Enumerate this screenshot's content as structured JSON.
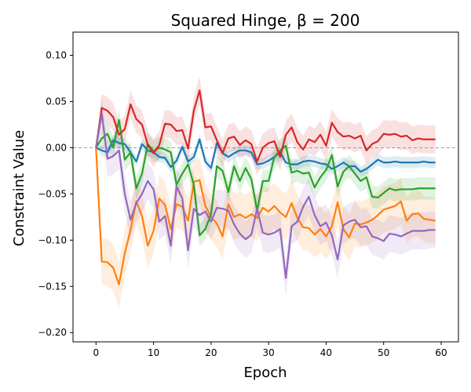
{
  "chart_data": {
    "type": "line",
    "title": "Squared Hinge, β = 200",
    "xlabel": "Epoch",
    "ylabel": "Constraint Value",
    "xlim": [
      -4,
      63
    ],
    "ylim": [
      -0.21,
      0.125
    ],
    "xticks": [
      "0",
      "10",
      "20",
      "30",
      "40",
      "50",
      "60"
    ],
    "yticks": [
      "0.10",
      "0.05",
      "0.00",
      "−0.05",
      "−0.10",
      "−0.15",
      "−0.20"
    ],
    "reference_line": 0.0,
    "grid": false,
    "x": [
      0,
      1,
      2,
      3,
      4,
      5,
      6,
      7,
      8,
      9,
      10,
      11,
      12,
      13,
      14,
      15,
      16,
      17,
      18,
      19,
      20,
      21,
      22,
      23,
      24,
      25,
      26,
      27,
      28,
      29,
      30,
      31,
      32,
      33,
      34,
      35,
      36,
      37,
      38,
      39,
      40,
      41,
      42,
      43,
      44,
      45,
      46,
      47,
      48,
      49,
      50,
      51,
      52,
      53,
      54,
      55,
      56,
      57,
      58,
      59
    ],
    "series": [
      {
        "color": "#1f77b4",
        "band": 0.006,
        "values": [
          0.0,
          -0.003,
          -0.005,
          0.008,
          0.005,
          0.004,
          -0.005,
          -0.015,
          0.004,
          -0.003,
          -0.005,
          -0.01,
          -0.011,
          -0.021,
          -0.014,
          0.001,
          -0.015,
          -0.01,
          0.009,
          -0.015,
          -0.022,
          0.005,
          -0.006,
          -0.01,
          -0.006,
          -0.003,
          -0.003,
          -0.005,
          -0.018,
          -0.017,
          -0.014,
          -0.01,
          -0.005,
          -0.016,
          -0.018,
          -0.018,
          -0.015,
          -0.014,
          -0.015,
          -0.017,
          -0.018,
          -0.023,
          -0.02,
          -0.016,
          -0.02,
          -0.02,
          -0.026,
          -0.023,
          -0.018,
          -0.013,
          -0.016,
          -0.016,
          -0.015,
          -0.016,
          -0.016,
          -0.016,
          -0.016,
          -0.015,
          -0.016,
          -0.016
        ]
      },
      {
        "color": "#ff7f0e",
        "band": 0.025,
        "values": [
          0.0,
          -0.123,
          -0.124,
          -0.13,
          -0.148,
          -0.114,
          -0.089,
          -0.058,
          -0.074,
          -0.106,
          -0.09,
          -0.055,
          -0.062,
          -0.088,
          -0.061,
          -0.064,
          -0.079,
          -0.037,
          -0.035,
          -0.063,
          -0.075,
          -0.082,
          -0.096,
          -0.061,
          -0.075,
          -0.072,
          -0.076,
          -0.072,
          -0.076,
          -0.065,
          -0.069,
          -0.063,
          -0.07,
          -0.075,
          -0.06,
          -0.076,
          -0.086,
          -0.087,
          -0.094,
          -0.088,
          -0.096,
          -0.085,
          -0.059,
          -0.088,
          -0.097,
          -0.082,
          -0.083,
          -0.081,
          -0.078,
          -0.073,
          -0.067,
          -0.065,
          -0.063,
          -0.058,
          -0.079,
          -0.072,
          -0.071,
          -0.077,
          -0.078,
          -0.079
        ]
      },
      {
        "color": "#2ca02c",
        "band": 0.012,
        "values": [
          0.0,
          0.01,
          0.015,
          0.0,
          0.03,
          -0.013,
          -0.005,
          -0.044,
          -0.028,
          0.004,
          -0.004,
          0.0,
          -0.002,
          -0.005,
          -0.04,
          -0.028,
          -0.018,
          -0.04,
          -0.095,
          -0.088,
          -0.072,
          -0.02,
          -0.025,
          -0.048,
          -0.02,
          -0.036,
          -0.022,
          -0.034,
          -0.068,
          -0.036,
          -0.036,
          -0.01,
          -0.003,
          0.002,
          -0.027,
          -0.025,
          -0.028,
          -0.027,
          -0.043,
          -0.032,
          -0.024,
          -0.008,
          -0.042,
          -0.026,
          -0.02,
          -0.028,
          -0.036,
          -0.032,
          -0.053,
          -0.054,
          -0.049,
          -0.044,
          -0.046,
          -0.045,
          -0.045,
          -0.045,
          -0.044,
          -0.044,
          -0.044,
          -0.044
        ]
      },
      {
        "color": "#d62728",
        "band": 0.015,
        "values": [
          0.0,
          0.043,
          0.04,
          0.033,
          0.014,
          0.02,
          0.047,
          0.031,
          0.025,
          0.003,
          -0.006,
          0.003,
          0.026,
          0.025,
          0.018,
          0.019,
          -0.001,
          0.04,
          0.062,
          0.022,
          0.023,
          0.008,
          -0.006,
          0.01,
          0.012,
          0.003,
          0.008,
          0.004,
          -0.015,
          0.0,
          0.005,
          0.007,
          -0.01,
          0.014,
          0.022,
          0.006,
          -0.002,
          0.009,
          0.006,
          0.014,
          0.002,
          0.027,
          0.017,
          0.012,
          0.013,
          0.01,
          0.013,
          -0.003,
          0.004,
          0.007,
          0.015,
          0.014,
          0.015,
          0.012,
          0.013,
          0.008,
          0.01,
          0.009,
          0.009,
          0.009
        ]
      },
      {
        "color": "#9467bd",
        "band": 0.02,
        "values": [
          0.0,
          0.037,
          -0.012,
          -0.009,
          -0.003,
          -0.05,
          -0.078,
          -0.06,
          -0.05,
          -0.036,
          -0.045,
          -0.08,
          -0.074,
          -0.106,
          -0.042,
          -0.055,
          -0.111,
          -0.066,
          -0.073,
          -0.069,
          -0.08,
          -0.065,
          -0.066,
          -0.068,
          -0.083,
          -0.093,
          -0.099,
          -0.094,
          -0.066,
          -0.092,
          -0.094,
          -0.092,
          -0.088,
          -0.141,
          -0.085,
          -0.08,
          -0.064,
          -0.053,
          -0.073,
          -0.085,
          -0.081,
          -0.095,
          -0.121,
          -0.084,
          -0.08,
          -0.078,
          -0.086,
          -0.085,
          -0.096,
          -0.098,
          -0.101,
          -0.093,
          -0.094,
          -0.096,
          -0.093,
          -0.09,
          -0.09,
          -0.09,
          -0.089,
          -0.089
        ]
      }
    ]
  }
}
